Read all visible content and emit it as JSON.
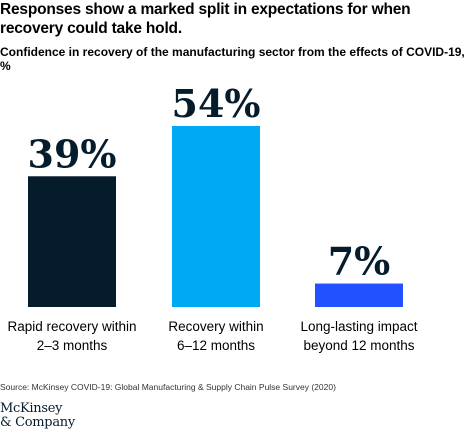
{
  "header": {
    "title": "Responses show a marked split in expectations for when recovery could take hold.",
    "subtitle": "Confidence in recovery of the manufacturing sector from the effects of COVID-19, %"
  },
  "chart_data": {
    "type": "bar",
    "categories": [
      [
        "Rapid recovery within",
        "2–3 months"
      ],
      [
        "Recovery within",
        "6–12 months"
      ],
      [
        "Long-lasting impact",
        "beyond 12 months"
      ]
    ],
    "values": [
      39,
      54,
      7
    ],
    "value_labels": [
      "39%",
      "54%",
      "7%"
    ],
    "colors": [
      "#051c2c",
      "#00a9f4",
      "#2251ff"
    ],
    "ylim": [
      0,
      54
    ],
    "grid": false,
    "legend": "none"
  },
  "footer": {
    "source": "Source: McKinsey COVID-19: Global Manufacturing & Supply Chain Pulse Survey (2020)",
    "logo_line1": "McKinsey",
    "logo_line2": "& Company"
  }
}
